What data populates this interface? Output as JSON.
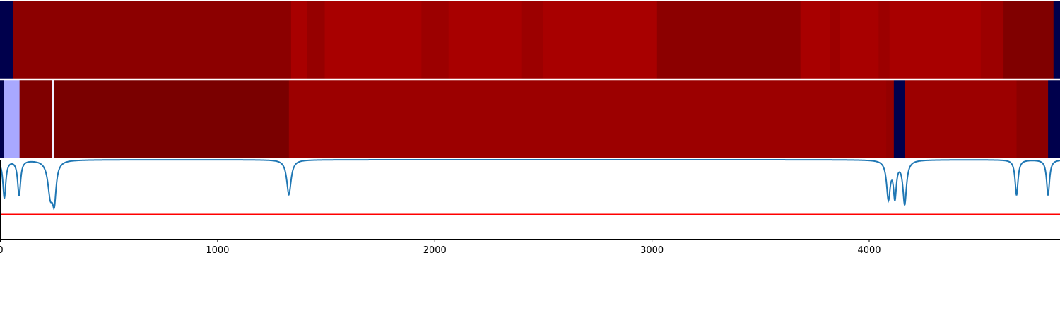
{
  "chart_data": {
    "type": "heatmap",
    "xlim": [
      0,
      4880
    ],
    "x_ticks": [
      {
        "value": 0,
        "label": "0"
      },
      {
        "value": 1000,
        "label": "1000"
      },
      {
        "value": 2000,
        "label": "2000"
      },
      {
        "value": 3000,
        "label": "3000"
      },
      {
        "value": 4000,
        "label": "4000"
      }
    ],
    "heatmap_rows": [
      {
        "segments": [
          {
            "start": 0,
            "end": 60,
            "color": "#00004c"
          },
          {
            "start": 60,
            "end": 1340,
            "color": "#8c0000"
          },
          {
            "start": 1340,
            "end": 1415,
            "color": "#a80000"
          },
          {
            "start": 1415,
            "end": 1495,
            "color": "#960000"
          },
          {
            "start": 1495,
            "end": 1940,
            "color": "#a80000"
          },
          {
            "start": 1940,
            "end": 2065,
            "color": "#9c0000"
          },
          {
            "start": 2065,
            "end": 2400,
            "color": "#a80000"
          },
          {
            "start": 2400,
            "end": 2500,
            "color": "#9c0000"
          },
          {
            "start": 2500,
            "end": 3025,
            "color": "#a80000"
          },
          {
            "start": 3025,
            "end": 3685,
            "color": "#8c0000"
          },
          {
            "start": 3685,
            "end": 3820,
            "color": "#a80000"
          },
          {
            "start": 3820,
            "end": 3865,
            "color": "#9c0000"
          },
          {
            "start": 3865,
            "end": 4045,
            "color": "#a80000"
          },
          {
            "start": 4045,
            "end": 4095,
            "color": "#9c0000"
          },
          {
            "start": 4095,
            "end": 4515,
            "color": "#a80000"
          },
          {
            "start": 4515,
            "end": 4620,
            "color": "#9c0000"
          },
          {
            "start": 4620,
            "end": 4850,
            "color": "#800000"
          },
          {
            "start": 4850,
            "end": 4880,
            "color": "#00004c"
          }
        ]
      },
      {
        "segments": [
          {
            "start": 0,
            "end": 18,
            "color": "#00004c"
          },
          {
            "start": 18,
            "end": 90,
            "color": "#a8a8ff"
          },
          {
            "start": 90,
            "end": 240,
            "color": "#800000"
          },
          {
            "start": 240,
            "end": 250,
            "color": "#f0f0ff"
          },
          {
            "start": 250,
            "end": 1330,
            "color": "#7a0000"
          },
          {
            "start": 1330,
            "end": 4080,
            "color": "#9c0000"
          },
          {
            "start": 4080,
            "end": 4115,
            "color": "#940000"
          },
          {
            "start": 4115,
            "end": 4165,
            "color": "#00004c"
          },
          {
            "start": 4165,
            "end": 4680,
            "color": "#9c0000"
          },
          {
            "start": 4680,
            "end": 4825,
            "color": "#8c0000"
          },
          {
            "start": 4825,
            "end": 4880,
            "color": "#00004c"
          }
        ]
      }
    ],
    "line": {
      "color": "#1f77b4",
      "ylim": [
        0,
        1
      ],
      "baseline": 1.0,
      "dips": [
        {
          "x": 20,
          "depth": 0.48,
          "width": 8
        },
        {
          "x": 88,
          "depth": 0.45,
          "width": 8
        },
        {
          "x": 232,
          "depth": 0.42,
          "width": 14
        },
        {
          "x": 250,
          "depth": 0.45,
          "width": 10
        },
        {
          "x": 1330,
          "depth": 0.44,
          "width": 12
        },
        {
          "x": 4090,
          "depth": 0.48,
          "width": 10
        },
        {
          "x": 4120,
          "depth": 0.45,
          "width": 8
        },
        {
          "x": 4165,
          "depth": 0.55,
          "width": 10
        },
        {
          "x": 4680,
          "depth": 0.45,
          "width": 8
        },
        {
          "x": 4825,
          "depth": 0.45,
          "width": 8
        }
      ]
    },
    "threshold": {
      "value": 0.31,
      "color": "#ff0000"
    },
    "grid": false,
    "legend": "none"
  }
}
